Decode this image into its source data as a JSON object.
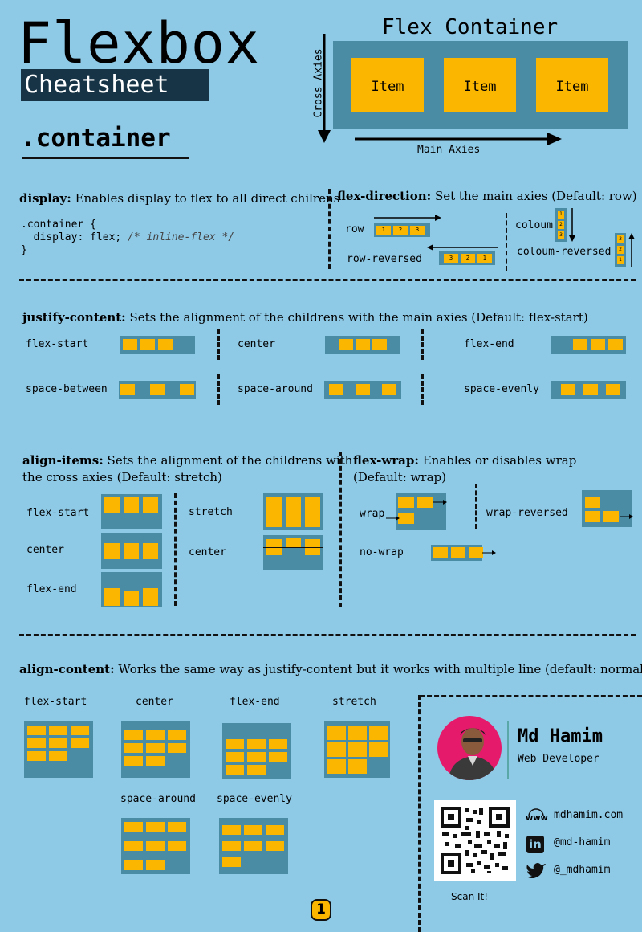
{
  "header": {
    "title": "Flexbox",
    "subtitle": "Cheatsheet",
    "selector": ".container"
  },
  "diagram": {
    "title": "Flex Container",
    "item_label": "Item",
    "cross_axis": "Cross Axies",
    "main_axis": "Main Axies"
  },
  "display": {
    "term": "display:",
    "desc": "Enables display to flex to all direct chilrens",
    "code_line1": ".container {",
    "code_line2_a": "  display: flex;",
    "code_line2_b": " /* inline-flex */",
    "code_line3": "}"
  },
  "flex_direction": {
    "term": "flex-direction:",
    "desc": "Set the main axies (Default: row)",
    "row": "row",
    "row_reversed": "row-reversed",
    "column": "coloum",
    "column_reversed": "coloum-reversed",
    "n1": "1",
    "n2": "2",
    "n3": "3"
  },
  "justify": {
    "term": "justify-content:",
    "desc": "Sets the alignment of the childrens with the main axies (Default: flex-start)",
    "opts": [
      "flex-start",
      "center",
      "flex-end",
      "space-between",
      "space-around",
      "space-evenly"
    ]
  },
  "align_items": {
    "term": "align-items:",
    "desc_line1": "Sets the alignment of the childrens with",
    "desc_line2": "the cross axies (Default: stretch)",
    "opts": [
      "flex-start",
      "center",
      "flex-end",
      "stretch",
      "center"
    ]
  },
  "flex_wrap": {
    "term": "flex-wrap:",
    "desc_line1": "Enables or disables wrap",
    "desc_line2": "(Default: wrap)",
    "wrap": "wrap",
    "wrap_reversed": "wrap-reversed",
    "no_wrap": "no-wrap"
  },
  "align_content": {
    "term": "align-content:",
    "desc": "Works the same way as justify-content but it works with multiple line (default: normal)",
    "opts": [
      "flex-start",
      "center",
      "flex-end",
      "stretch",
      "space-around",
      "space-evenly"
    ]
  },
  "author": {
    "name": "Md Hamim",
    "role": "Web Developer",
    "website": "mdhamim.com",
    "linkedin": "@md-hamim",
    "twitter": "@_mdhamim",
    "scan": "Scan It!",
    "web_icon_text": "www",
    "linkedin_icon_text": "in"
  },
  "page_number": "1",
  "colors": {
    "background": "#8EC9E6",
    "container": "#4A8CA4",
    "item": "#FBB700",
    "title_bg": "#173446"
  }
}
